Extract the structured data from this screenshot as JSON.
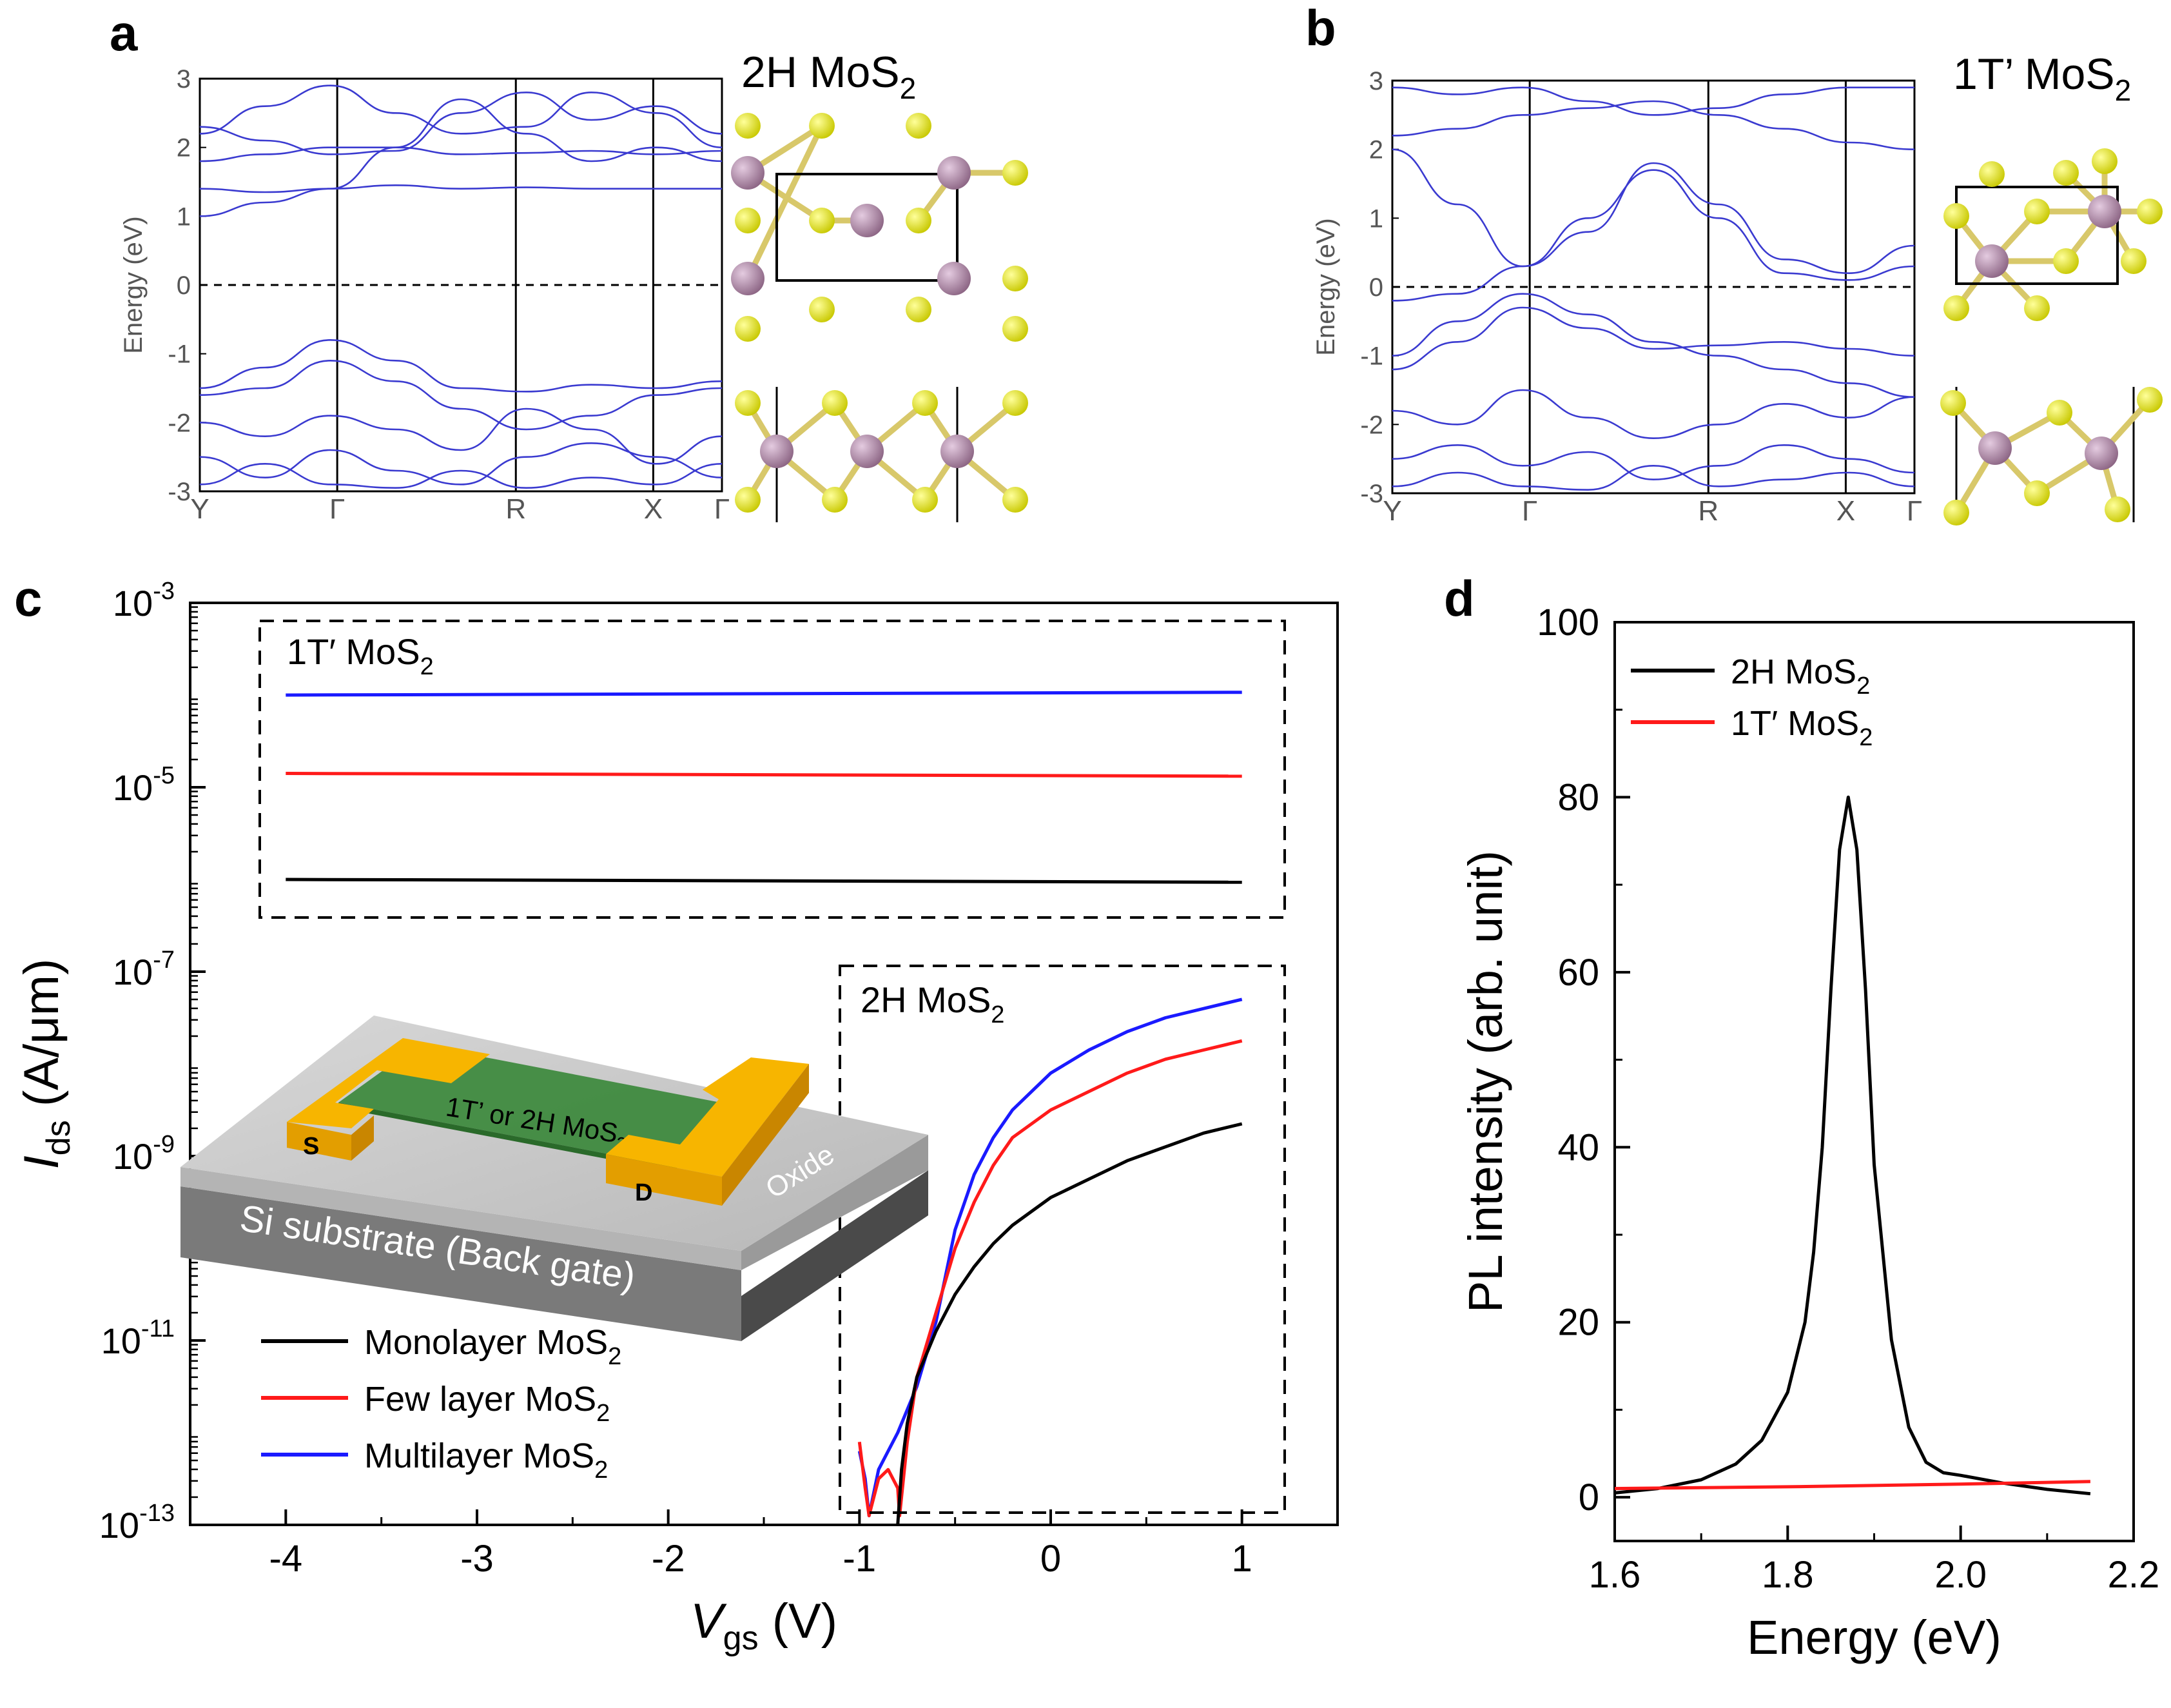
{
  "panels": {
    "a": {
      "label": "a",
      "structure_title": "2H MoS",
      "structure_title_sub": "2",
      "chart_ref": "band_structure_2H"
    },
    "b": {
      "label": "b",
      "structure_title": "1T’ MoS",
      "structure_title_sub": "2",
      "chart_ref": "band_structure_1T"
    },
    "c": {
      "label": "c",
      "box_1T_label": "1T′ MoS",
      "box_1T_label_sub": "2",
      "box_2H_label": "2H MoS",
      "box_2H_label_sub": "2",
      "device_inset": {
        "channel_label": "1T’ or 2H MoS",
        "channel_label_sub": "2",
        "source_label": "S",
        "drain_label": "D",
        "oxide_label": "Oxide",
        "substrate_label": "Si substrate (Back gate)"
      }
    },
    "d": {
      "label": "d"
    }
  },
  "colors": {
    "band_line": "#3a3ad0",
    "black_series": "#000000",
    "red_series": "#ff1a1a",
    "blue_series": "#1a1aff",
    "mo_atom": "#a7809b",
    "s_atom": "#e6e600",
    "gold_contact": "#f5b400",
    "channel_green": "#3a8a3a",
    "oxide_gray": "#c8c8c8",
    "substrate_gray": "#6e6e6e"
  },
  "chart_data": [
    {
      "id": "band_structure_2H",
      "type": "line",
      "title": "",
      "ylabel": "Energy (eV)",
      "xlabel": "",
      "ylim": [
        -3,
        3
      ],
      "y_ticks": [
        "3",
        "2",
        "1",
        "0",
        "-1",
        "-2",
        "-3"
      ],
      "x_ticks": [
        "Y",
        "Γ",
        "R",
        "X",
        "Γ"
      ],
      "x_tick_positions": [
        0,
        1,
        2.3,
        3.3,
        3.8
      ],
      "fermi_level": 0,
      "bands": [
        [
          1.4,
          1.35,
          1.4,
          1.45,
          1.4,
          1.42,
          1.4,
          1.4,
          1.4
        ],
        [
          1.8,
          1.9,
          2.0,
          2.0,
          1.9,
          1.92,
          1.95,
          1.9,
          1.95
        ],
        [
          2.3,
          2.1,
          1.9,
          1.95,
          2.5,
          2.8,
          2.4,
          2.6,
          2.2
        ],
        [
          2.2,
          2.6,
          2.9,
          2.5,
          2.2,
          2.3,
          2.8,
          2.5,
          2.0
        ],
        [
          1.0,
          1.2,
          1.4,
          2.0,
          2.7,
          2.2,
          1.8,
          2.0,
          1.8
        ],
        [
          -1.5,
          -1.2,
          -0.8,
          -1.1,
          -1.5,
          -1.55,
          -1.45,
          -1.5,
          -1.4
        ],
        [
          -1.6,
          -1.5,
          -1.1,
          -1.4,
          -1.8,
          -2.1,
          -1.9,
          -1.6,
          -1.5
        ],
        [
          -2.0,
          -2.2,
          -1.9,
          -2.1,
          -2.4,
          -1.8,
          -2.1,
          -2.6,
          -2.2
        ],
        [
          -2.5,
          -2.8,
          -2.4,
          -2.7,
          -2.9,
          -2.5,
          -2.3,
          -2.5,
          -2.8
        ],
        [
          -2.9,
          -2.6,
          -2.9,
          -2.95,
          -2.7,
          -2.95,
          -2.8,
          -2.9,
          -2.6
        ]
      ]
    },
    {
      "id": "band_structure_1T",
      "type": "line",
      "title": "",
      "ylabel": "Energy (eV)",
      "xlabel": "",
      "ylim": [
        -3,
        3
      ],
      "y_ticks": [
        "3",
        "2",
        "1",
        "0",
        "-1",
        "-2",
        "-3"
      ],
      "x_ticks": [
        "Y",
        "Γ",
        "R",
        "X",
        "Γ"
      ],
      "x_tick_positions": [
        0,
        1,
        2.3,
        3.3,
        3.8
      ],
      "fermi_level": 0,
      "bands": [
        [
          2.0,
          1.2,
          0.3,
          0.8,
          1.8,
          1.2,
          0.4,
          0.2,
          0.6
        ],
        [
          -0.2,
          -0.1,
          0.3,
          1.0,
          1.7,
          1.0,
          0.2,
          0.1,
          0.3
        ],
        [
          -1.2,
          -0.8,
          -0.3,
          -0.6,
          -0.9,
          -0.85,
          -0.8,
          -0.9,
          -1.0
        ],
        [
          -1.0,
          -0.5,
          -0.1,
          -0.4,
          -0.8,
          -1.0,
          -1.2,
          -1.4,
          -1.6
        ],
        [
          2.2,
          2.3,
          2.5,
          2.6,
          2.7,
          2.5,
          2.3,
          2.1,
          2.0
        ],
        [
          2.9,
          2.8,
          2.9,
          2.7,
          2.5,
          2.6,
          2.8,
          2.9,
          2.9
        ],
        [
          -1.8,
          -2.0,
          -1.5,
          -1.9,
          -2.2,
          -2.0,
          -1.7,
          -1.9,
          -1.6
        ],
        [
          -2.5,
          -2.3,
          -2.6,
          -2.4,
          -2.8,
          -2.6,
          -2.3,
          -2.5,
          -2.7
        ],
        [
          -2.9,
          -2.7,
          -2.9,
          -2.95,
          -2.6,
          -2.9,
          -2.8,
          -2.7,
          -2.9
        ]
      ]
    },
    {
      "id": "transfer_curves",
      "type": "line",
      "title": "",
      "xlabel": "V",
      "xlabel_sub": "gs",
      "xlabel_unit": " (V)",
      "ylabel": "I",
      "ylabel_sub": "ds",
      "ylabel_unit": " (A/μm)",
      "xlim": [
        -4.5,
        1.5
      ],
      "ylim_log10": [
        -13,
        -3
      ],
      "y_scale": "log",
      "x_ticks": [
        "-4",
        "-3",
        "-2",
        "-1",
        "0",
        "1"
      ],
      "x_tick_values": [
        -4,
        -3,
        -2,
        -1,
        0,
        1
      ],
      "y_tick_labels": [
        "10",
        "10",
        "10",
        "10",
        "10",
        "10"
      ],
      "y_tick_exponents": [
        "-3",
        "-5",
        "-7",
        "-9",
        "-11",
        "-13"
      ],
      "y_tick_values_log10": [
        -3,
        -5,
        -7,
        -9,
        -11,
        -13
      ],
      "legend": [
        {
          "label": "Monolayer MoS",
          "sub": "2",
          "color": "#000000"
        },
        {
          "label": "Few layer MoS",
          "sub": "2",
          "color": "#ff1a1a"
        },
        {
          "label": "Multilayer MoS",
          "sub": "2",
          "color": "#1a1aff"
        }
      ],
      "series_1T": [
        {
          "name": "Multilayer MoS2",
          "color": "#1a1aff",
          "x": [
            -4,
            1
          ],
          "log10_y": [
            -4.0,
            -3.97
          ]
        },
        {
          "name": "Few layer MoS2",
          "color": "#ff1a1a",
          "x": [
            -4,
            1
          ],
          "log10_y": [
            -4.85,
            -4.88
          ]
        },
        {
          "name": "Monolayer MoS2",
          "color": "#000000",
          "x": [
            -4,
            1
          ],
          "log10_y": [
            -6.0,
            -6.03
          ]
        }
      ],
      "series_2H": [
        {
          "name": "Multilayer MoS2",
          "color": "#1a1aff",
          "x": [
            -1.0,
            -0.97,
            -0.95,
            -0.9,
            -0.85,
            -0.8,
            -0.7,
            -0.6,
            -0.5,
            -0.4,
            -0.3,
            -0.2,
            -0.1,
            0.0,
            0.2,
            0.4,
            0.6,
            0.8,
            1.0
          ],
          "log10_y": [
            -12.2,
            -12.5,
            -12.9,
            -12.4,
            -12.2,
            -12.0,
            -11.5,
            -10.8,
            -9.8,
            -9.2,
            -8.8,
            -8.5,
            -8.3,
            -8.1,
            -7.85,
            -7.65,
            -7.5,
            -7.4,
            -7.3
          ]
        },
        {
          "name": "Few layer MoS2",
          "color": "#ff1a1a",
          "x": [
            -1.0,
            -0.97,
            -0.95,
            -0.9,
            -0.85,
            -0.8,
            -0.79,
            -0.75,
            -0.7,
            -0.6,
            -0.5,
            -0.4,
            -0.3,
            -0.2,
            -0.1,
            0.0,
            0.2,
            0.4,
            0.6,
            0.8,
            1.0
          ],
          "log10_y": [
            -12.1,
            -12.6,
            -12.9,
            -12.5,
            -12.4,
            -12.6,
            -12.9,
            -12.1,
            -11.4,
            -10.7,
            -10.0,
            -9.5,
            -9.1,
            -8.8,
            -8.65,
            -8.5,
            -8.3,
            -8.1,
            -7.95,
            -7.85,
            -7.75
          ]
        },
        {
          "name": "Monolayer MoS2",
          "color": "#000000",
          "x": [
            -0.8,
            -0.78,
            -0.75,
            -0.7,
            -0.6,
            -0.5,
            -0.4,
            -0.3,
            -0.2,
            -0.1,
            0.0,
            0.2,
            0.4,
            0.6,
            0.8,
            1.0
          ],
          "log10_y": [
            -13.0,
            -12.4,
            -11.9,
            -11.4,
            -10.9,
            -10.5,
            -10.2,
            -9.95,
            -9.75,
            -9.6,
            -9.45,
            -9.25,
            -9.05,
            -8.9,
            -8.75,
            -8.65
          ]
        }
      ]
    },
    {
      "id": "pl_spectrum",
      "type": "line",
      "title": "",
      "xlabel": "Energy (eV)",
      "ylabel": "PL intensity (arb. unit)",
      "xlim": [
        1.6,
        2.2
      ],
      "ylim": [
        -5,
        100
      ],
      "x_ticks": [
        "1.6",
        "1.8",
        "2.0",
        "2.2"
      ],
      "x_tick_values": [
        1.6,
        1.8,
        2.0,
        2.2
      ],
      "y_ticks": [
        "0",
        "20",
        "40",
        "60",
        "80",
        "100"
      ],
      "y_tick_values": [
        0,
        20,
        40,
        60,
        80,
        100
      ],
      "legend": [
        {
          "label": "2H MoS",
          "sub": "2",
          "color": "#000000"
        },
        {
          "label": "1T′ MoS",
          "sub": "2",
          "color": "#ff1a1a"
        }
      ],
      "series": [
        {
          "name": "2H MoS2",
          "color": "#000000",
          "x": [
            1.6,
            1.65,
            1.7,
            1.74,
            1.77,
            1.8,
            1.82,
            1.825,
            1.83,
            1.84,
            1.85,
            1.86,
            1.87,
            1.88,
            1.89,
            1.9,
            1.92,
            1.94,
            1.96,
            1.98,
            2.0,
            2.05,
            2.1,
            2.15
          ],
          "y": [
            0.5,
            1.0,
            2.0,
            3.8,
            6.5,
            12.0,
            20.0,
            24.0,
            28.0,
            40.0,
            58.0,
            74.0,
            80.0,
            74.0,
            58.0,
            38.0,
            18.0,
            8.0,
            4.0,
            2.8,
            2.5,
            1.6,
            0.9,
            0.4
          ]
        },
        {
          "name": "1T′ MoS2",
          "color": "#ff1a1a",
          "x": [
            1.6,
            1.8,
            2.0,
            2.15
          ],
          "y": [
            1.0,
            1.2,
            1.5,
            1.8
          ]
        }
      ]
    }
  ]
}
